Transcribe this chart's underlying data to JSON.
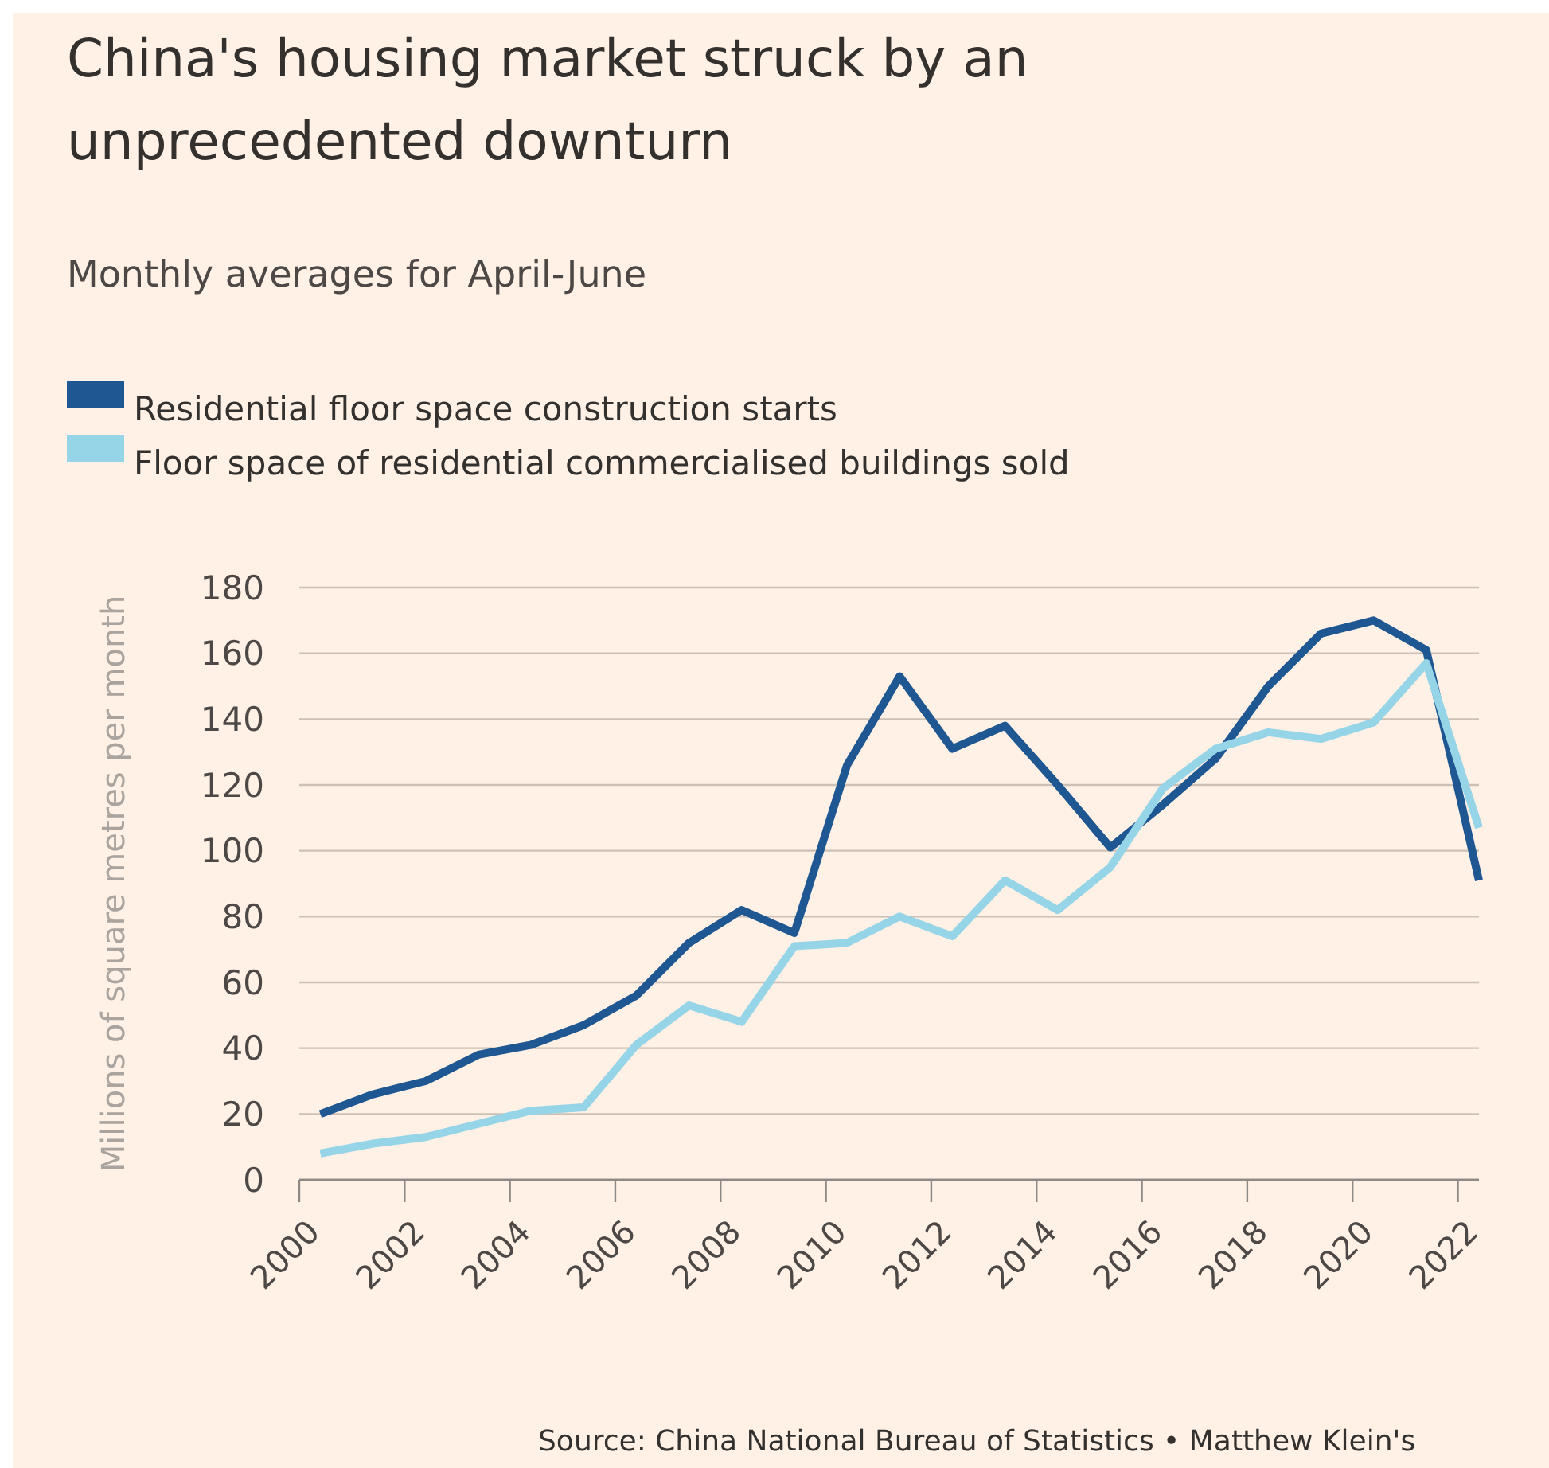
{
  "chart_data": {
    "type": "line",
    "title": "China's housing market struck by an unprecedented downturn",
    "subtitle": "Monthly averages for April-June",
    "ylabel": "Millions of square metres per month",
    "x": [
      2000.4,
      2001.4,
      2002.4,
      2003.4,
      2004.4,
      2005.4,
      2006.4,
      2007.4,
      2008.4,
      2009.4,
      2010.4,
      2011.4,
      2012.4,
      2013.4,
      2014.4,
      2015.4,
      2016.4,
      2017.4,
      2018.4,
      2019.4,
      2020.4,
      2021.4,
      2022.4
    ],
    "series": [
      {
        "name": "Residential floor space construction starts",
        "color": "#1e5791",
        "values": [
          20,
          26,
          30,
          38,
          41,
          47,
          56,
          72,
          82,
          75,
          126,
          153,
          131,
          138,
          120,
          101,
          114,
          128,
          150,
          166,
          170,
          161,
          91
        ]
      },
      {
        "name": "Floor space of residential commercialised buildings sold",
        "color": "#96d4e8",
        "values": [
          8,
          11,
          13,
          17,
          21,
          22,
          41,
          53,
          48,
          71,
          72,
          80,
          74,
          91,
          82,
          95,
          119,
          131,
          136,
          134,
          139,
          157,
          107
        ]
      }
    ],
    "xlim": [
      2000,
      2022.4
    ],
    "xticks": [
      2000,
      2002,
      2004,
      2006,
      2008,
      2010,
      2012,
      2014,
      2016,
      2018,
      2020,
      2022
    ],
    "ylim": [
      0,
      180
    ],
    "yticks": [
      0,
      20,
      40,
      60,
      80,
      100,
      120,
      140,
      160,
      180
    ],
    "grid": "y",
    "legend": "top",
    "line_style": "solid",
    "annotations": [
      "Source: China National Bureau of Statistics • Matthew Klein's"
    ]
  }
}
